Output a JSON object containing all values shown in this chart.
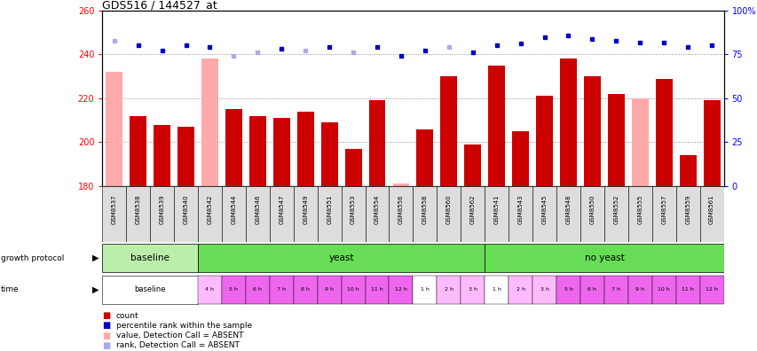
{
  "title": "GDS516 / 144527_at",
  "samples": [
    "GSM8537",
    "GSM8538",
    "GSM8539",
    "GSM8540",
    "GSM8542",
    "GSM8544",
    "GSM8546",
    "GSM8547",
    "GSM8549",
    "GSM8551",
    "GSM8553",
    "GSM8554",
    "GSM8556",
    "GSM8558",
    "GSM8560",
    "GSM8562",
    "GSM8541",
    "GSM8543",
    "GSM8545",
    "GSM8548",
    "GSM8550",
    "GSM8552",
    "GSM8555",
    "GSM8557",
    "GSM8559",
    "GSM8561"
  ],
  "values": [
    232,
    212,
    208,
    207,
    238,
    215,
    212,
    211,
    214,
    209,
    197,
    219,
    181,
    206,
    230,
    199,
    235,
    205,
    221,
    238,
    230,
    222,
    220,
    229,
    194,
    219
  ],
  "absent": [
    true,
    false,
    false,
    false,
    true,
    false,
    false,
    false,
    false,
    false,
    false,
    false,
    true,
    false,
    false,
    false,
    false,
    false,
    false,
    false,
    false,
    false,
    true,
    false,
    false,
    false
  ],
  "rank_values": [
    83,
    80,
    77,
    80,
    79,
    74,
    76,
    78,
    77,
    79,
    76,
    79,
    74,
    77,
    79,
    76,
    80,
    81,
    85,
    86,
    84,
    83,
    82,
    82,
    79,
    80
  ],
  "rank_absent": [
    true,
    false,
    false,
    false,
    false,
    true,
    true,
    false,
    true,
    false,
    true,
    false,
    false,
    false,
    true,
    false,
    false,
    false,
    false,
    false,
    false,
    false,
    false,
    false,
    false,
    false
  ],
  "ylim_left": [
    180,
    260
  ],
  "ylim_right": [
    0,
    100
  ],
  "yticks_left": [
    180,
    200,
    220,
    240,
    260
  ],
  "yticks_right": [
    0,
    25,
    50,
    75,
    100
  ],
  "ytick_labels_right": [
    "0",
    "25",
    "50",
    "75",
    "100%"
  ],
  "bar_color_present": "#cc0000",
  "bar_color_absent": "#ffaaaa",
  "dot_color_present": "#0000cc",
  "dot_color_absent": "#aaaaee",
  "gp_segments": [
    {
      "label": "baseline",
      "start": 0,
      "end": 4,
      "color": "#bbeeaa"
    },
    {
      "label": "yeast",
      "start": 4,
      "end": 16,
      "color": "#66dd55"
    },
    {
      "label": "no yeast",
      "start": 16,
      "end": 26,
      "color": "#66dd55"
    }
  ],
  "time_entries": [
    {
      "label": "baseline",
      "color": "#ffffff"
    },
    {
      "label": "1 h",
      "color": "#ffbbff"
    },
    {
      "label": "2 h",
      "color": "#ffbbff"
    },
    {
      "label": "3 h",
      "color": "#ffbbff"
    },
    {
      "label": "4 h",
      "color": "#ffbbff"
    },
    {
      "label": "5 h",
      "color": "#ee66ee"
    },
    {
      "label": "6 h",
      "color": "#ee66ee"
    },
    {
      "label": "7 h",
      "color": "#ee66ee"
    },
    {
      "label": "8 h",
      "color": "#ee66ee"
    },
    {
      "label": "9 h",
      "color": "#ee66ee"
    },
    {
      "label": "10 h",
      "color": "#ee66ee"
    },
    {
      "label": "11 h",
      "color": "#ee66ee"
    },
    {
      "label": "12 h",
      "color": "#ee66ee"
    },
    {
      "label": "1 h",
      "color": "#ffffff"
    },
    {
      "label": "2 h",
      "color": "#ffbbff"
    },
    {
      "label": "3 h",
      "color": "#ffbbff"
    },
    {
      "label": "1 h",
      "color": "#ffffff"
    },
    {
      "label": "2 h",
      "color": "#ffbbff"
    },
    {
      "label": "3 h",
      "color": "#ffbbff"
    },
    {
      "label": "5 h",
      "color": "#ee66ee"
    },
    {
      "label": "6 h",
      "color": "#ee66ee"
    },
    {
      "label": "7 h",
      "color": "#ee66ee"
    },
    {
      "label": "9 h",
      "color": "#ee66ee"
    },
    {
      "label": "10 h",
      "color": "#ee66ee"
    },
    {
      "label": "11 h",
      "color": "#ee66ee"
    },
    {
      "label": "12 h",
      "color": "#ee66ee"
    }
  ]
}
